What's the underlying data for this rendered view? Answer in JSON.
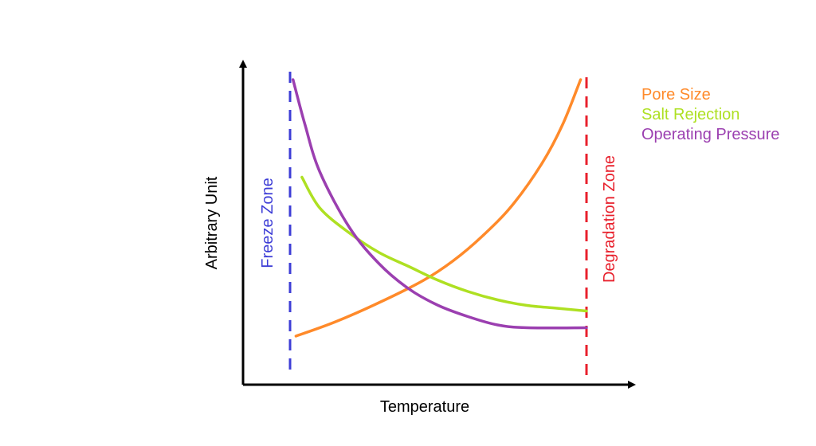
{
  "chart_data": {
    "type": "line",
    "title": "",
    "xlabel": "Temperature",
    "ylabel": "Arbitrary Unit",
    "xlim": [
      0,
      100
    ],
    "ylim": [
      0,
      100
    ],
    "grid": false,
    "legend": "top-right",
    "zones": [
      {
        "label": "Freeze Zone",
        "x": 0,
        "color": "#3d3dd6"
      },
      {
        "label": "Degradation Zone",
        "x": 100,
        "color": "#e8202c"
      }
    ],
    "series": [
      {
        "name": "Pore Size",
        "color": "#ff8a2a",
        "points": [
          [
            2,
            8
          ],
          [
            15,
            13
          ],
          [
            30,
            20
          ],
          [
            45,
            28
          ],
          [
            55,
            35
          ],
          [
            65,
            44
          ],
          [
            75,
            55
          ],
          [
            85,
            70
          ],
          [
            92,
            84
          ],
          [
            98,
            100
          ]
        ]
      },
      {
        "name": "Salt Rejection",
        "color": "#aee022",
        "points": [
          [
            4,
            65
          ],
          [
            10,
            54
          ],
          [
            20,
            45
          ],
          [
            30,
            38
          ],
          [
            40,
            33
          ],
          [
            50,
            28
          ],
          [
            60,
            24
          ],
          [
            70,
            21
          ],
          [
            80,
            19
          ],
          [
            90,
            18
          ],
          [
            100,
            17
          ]
        ]
      },
      {
        "name": "Operating Pressure",
        "color": "#9b3fb0",
        "points": [
          [
            1,
            100
          ],
          [
            5,
            84
          ],
          [
            10,
            67
          ],
          [
            20,
            47
          ],
          [
            30,
            34
          ],
          [
            40,
            25
          ],
          [
            50,
            19
          ],
          [
            60,
            15
          ],
          [
            70,
            12
          ],
          [
            80,
            11
          ],
          [
            100,
            11
          ]
        ]
      }
    ]
  }
}
